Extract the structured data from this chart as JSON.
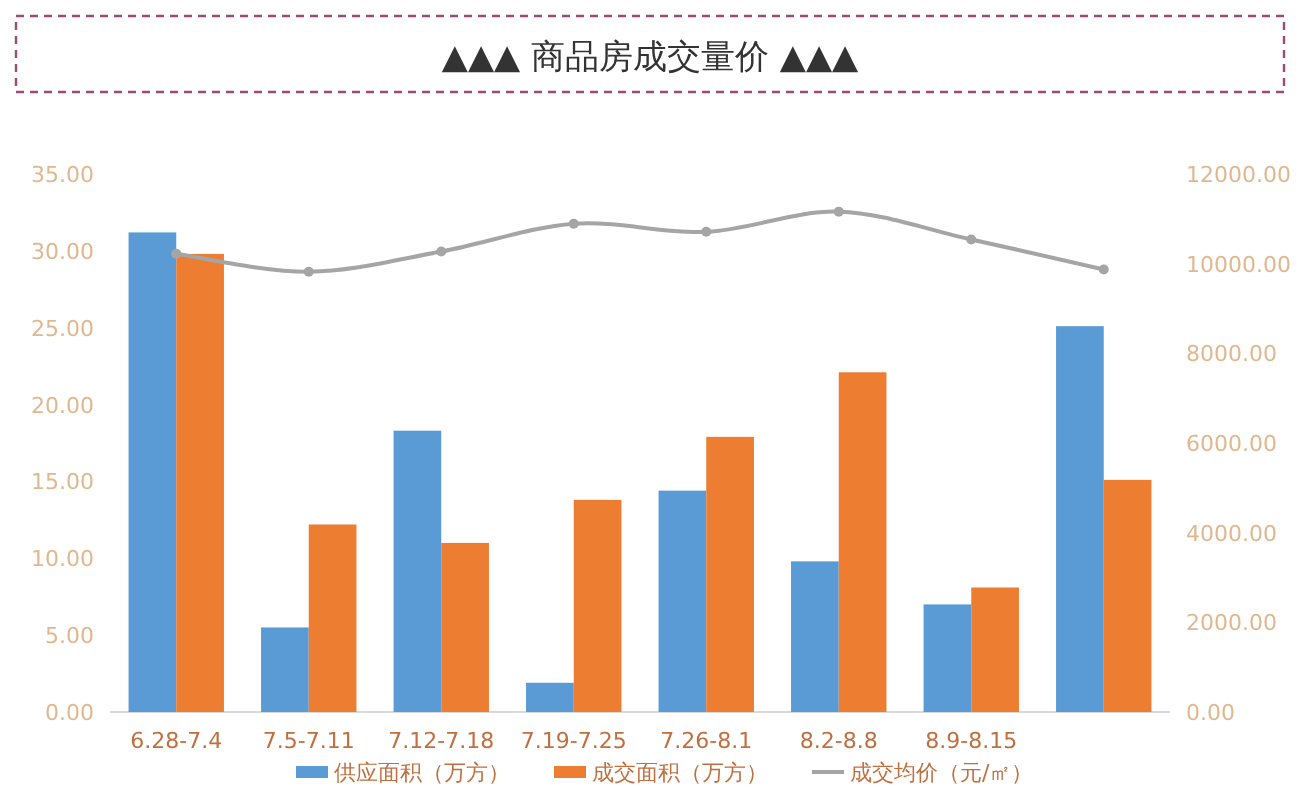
{
  "chart_data": {
    "type": "bar",
    "title": "▲▲▲  商品房成交量价  ▲▲▲",
    "categories": [
      "6.28-7.4",
      "7.5-7.11",
      "7.12-7.18",
      "7.19-7.25",
      "7.26-8.1",
      "8.2-8.8",
      "8.9-8.15",
      null
    ],
    "series": [
      {
        "name": "供应面积（万方）",
        "color": "#5b9bd5",
        "values": [
          31.2,
          5.5,
          18.3,
          1.9,
          14.4,
          9.8,
          7.0,
          25.1
        ]
      },
      {
        "name": "成交面积（万方）",
        "color": "#ed7d31",
        "values": [
          29.8,
          12.2,
          11.0,
          13.8,
          17.9,
          22.1,
          8.1,
          15.1
        ]
      },
      {
        "name": "成交均价（元/㎡）",
        "type": "line",
        "axis": "y2",
        "color": "#a5a5a5",
        "marker": "circle",
        "values": [
          10220,
          9820,
          10270,
          10890,
          10710,
          11160,
          10540,
          9870
        ]
      }
    ],
    "ylim": [
      0,
      35
    ],
    "yticks": [
      {
        "value": 0,
        "label": "0.00"
      },
      {
        "value": 5,
        "label": "5.00"
      },
      {
        "value": 10,
        "label": "10.00"
      },
      {
        "value": 15,
        "label": "15.00"
      },
      {
        "value": 20,
        "label": "20.00"
      },
      {
        "value": 25,
        "label": "25.00"
      },
      {
        "value": 30,
        "label": "30.00"
      },
      {
        "value": 35,
        "label": "35.00"
      }
    ],
    "y2lim": [
      0,
      12000
    ],
    "y2ticks": [
      {
        "value": 0,
        "label": "0.00"
      },
      {
        "value": 2000,
        "label": "2000.00"
      },
      {
        "value": 4000,
        "label": "4000.00"
      },
      {
        "value": 6000,
        "label": "6000.00"
      },
      {
        "value": 8000,
        "label": "8000.00"
      },
      {
        "value": 10000,
        "label": "10000.00"
      },
      {
        "value": 12000,
        "label": "12000.00"
      }
    ],
    "grid": false,
    "legend": "bottom"
  }
}
